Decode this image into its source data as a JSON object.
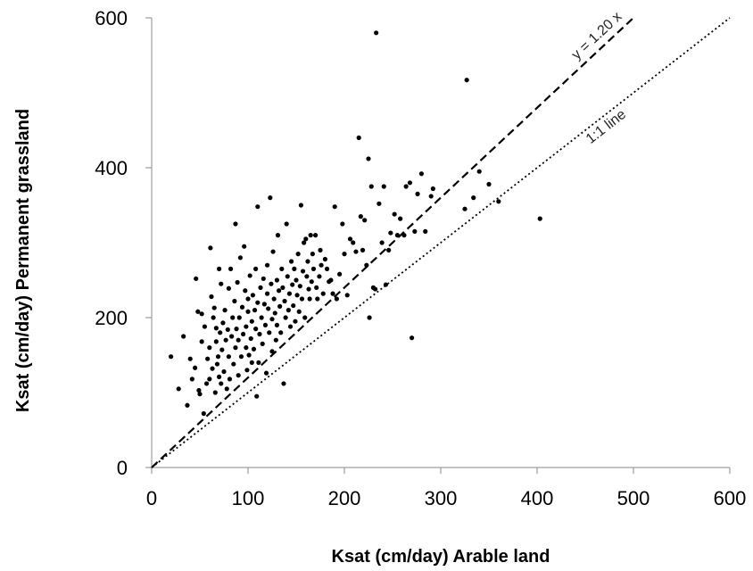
{
  "chart_data": {
    "type": "scatter",
    "title": "",
    "xlabel": "Ksat (cm/day) Arable land",
    "ylabel": "Ksat (cm/day) Permanent grassland",
    "xlim": [
      0,
      600
    ],
    "ylim": [
      0,
      600
    ],
    "x_ticks": [
      "0",
      "100",
      "200",
      "300",
      "400",
      "500",
      "600"
    ],
    "y_ticks": [
      "0",
      "200",
      "400",
      "600"
    ],
    "grid": false,
    "legend": "none",
    "colors": {
      "points": "#000000",
      "axes": "#888888"
    },
    "reference_lines": [
      {
        "label": "y = 1.20 x",
        "slope": 1.2,
        "style": "dashed",
        "x_range": [
          0,
          500
        ]
      },
      {
        "label": "1:1 line",
        "slope": 1.0,
        "style": "dotted",
        "x_range": [
          0,
          600
        ]
      }
    ],
    "points": [
      [
        20,
        148
      ],
      [
        28,
        105
      ],
      [
        33,
        175
      ],
      [
        37,
        83
      ],
      [
        40,
        145
      ],
      [
        42,
        118
      ],
      [
        45,
        133
      ],
      [
        46,
        252
      ],
      [
        48,
        208
      ],
      [
        49,
        103
      ],
      [
        50,
        98
      ],
      [
        52,
        168
      ],
      [
        52,
        205
      ],
      [
        54,
        72
      ],
      [
        55,
        188
      ],
      [
        57,
        112
      ],
      [
        58,
        145
      ],
      [
        60,
        118
      ],
      [
        60,
        160
      ],
      [
        61,
        293
      ],
      [
        62,
        228
      ],
      [
        63,
        132
      ],
      [
        64,
        200
      ],
      [
        65,
        213
      ],
      [
        66,
        100
      ],
      [
        67,
        186
      ],
      [
        67,
        168
      ],
      [
        68,
        138
      ],
      [
        69,
        148
      ],
      [
        70,
        265
      ],
      [
        70,
        121
      ],
      [
        71,
        180
      ],
      [
        72,
        245
      ],
      [
        72,
        112
      ],
      [
        73,
        157
      ],
      [
        74,
        193
      ],
      [
        75,
        128
      ],
      [
        76,
        210
      ],
      [
        77,
        170
      ],
      [
        78,
        105
      ],
      [
        79,
        184
      ],
      [
        80,
        239
      ],
      [
        80,
        148
      ],
      [
        81,
        118
      ],
      [
        82,
        265
      ],
      [
        83,
        175
      ],
      [
        84,
        200
      ],
      [
        85,
        138
      ],
      [
        86,
        222
      ],
      [
        87,
        160
      ],
      [
        87,
        325
      ],
      [
        88,
        185
      ],
      [
        89,
        247
      ],
      [
        90,
        123
      ],
      [
        90,
        170
      ],
      [
        91,
        200
      ],
      [
        92,
        280
      ],
      [
        93,
        148
      ],
      [
        94,
        214
      ],
      [
        95,
        178
      ],
      [
        96,
        295
      ],
      [
        97,
        236
      ],
      [
        98,
        160
      ],
      [
        98,
        188
      ],
      [
        99,
        130
      ],
      [
        100,
        208
      ],
      [
        100,
        225
      ],
      [
        101,
        150
      ],
      [
        102,
        256
      ],
      [
        103,
        172
      ],
      [
        104,
        195
      ],
      [
        104,
        140
      ],
      [
        105,
        230
      ],
      [
        106,
        158
      ],
      [
        107,
        210
      ],
      [
        108,
        185
      ],
      [
        108,
        265
      ],
      [
        109,
        95
      ],
      [
        110,
        220
      ],
      [
        110,
        348
      ],
      [
        111,
        140
      ],
      [
        112,
        178
      ],
      [
        113,
        240
      ],
      [
        114,
        200
      ],
      [
        115,
        165
      ],
      [
        116,
        252
      ],
      [
        117,
        218
      ],
      [
        118,
        190
      ],
      [
        119,
        126
      ],
      [
        120,
        232
      ],
      [
        120,
        270
      ],
      [
        121,
        212
      ],
      [
        122,
        180
      ],
      [
        123,
        360
      ],
      [
        124,
        245
      ],
      [
        125,
        198
      ],
      [
        125,
        155
      ],
      [
        126,
        288
      ],
      [
        127,
        225
      ],
      [
        128,
        206
      ],
      [
        129,
        170
      ],
      [
        130,
        250
      ],
      [
        130,
        190
      ],
      [
        131,
        310
      ],
      [
        132,
        236
      ],
      [
        133,
        215
      ],
      [
        134,
        180
      ],
      [
        135,
        265
      ],
      [
        136,
        240
      ],
      [
        137,
        112
      ],
      [
        138,
        222
      ],
      [
        139,
        200
      ],
      [
        140,
        325
      ],
      [
        141,
        255
      ],
      [
        142,
        210
      ],
      [
        143,
        232
      ],
      [
        144,
        188
      ],
      [
        145,
        275
      ],
      [
        146,
        244
      ],
      [
        147,
        216
      ],
      [
        148,
        265
      ],
      [
        149,
        195
      ],
      [
        150,
        250
      ],
      [
        151,
        230
      ],
      [
        152,
        285
      ],
      [
        153,
        208
      ],
      [
        154,
        242
      ],
      [
        155,
        350
      ],
      [
        156,
        225
      ],
      [
        157,
        262
      ],
      [
        158,
        300
      ],
      [
        159,
        200
      ],
      [
        160,
        305
      ],
      [
        161,
        255
      ],
      [
        162,
        275
      ],
      [
        163,
        238
      ],
      [
        164,
        225
      ],
      [
        165,
        310
      ],
      [
        166,
        248
      ],
      [
        167,
        285
      ],
      [
        168,
        265
      ],
      [
        170,
        310
      ],
      [
        171,
        240
      ],
      [
        172,
        225
      ],
      [
        174,
        255
      ],
      [
        175,
        290
      ],
      [
        176,
        270
      ],
      [
        178,
        232
      ],
      [
        180,
        278
      ],
      [
        182,
        265
      ],
      [
        184,
        248
      ],
      [
        186,
        250
      ],
      [
        188,
        232
      ],
      [
        190,
        348
      ],
      [
        192,
        225
      ],
      [
        195,
        258
      ],
      [
        198,
        325
      ],
      [
        200,
        285
      ],
      [
        203,
        230
      ],
      [
        206,
        305
      ],
      [
        209,
        300
      ],
      [
        212,
        288
      ],
      [
        215,
        440
      ],
      [
        217,
        335
      ],
      [
        219,
        290
      ],
      [
        221,
        330
      ],
      [
        223,
        270
      ],
      [
        225,
        412
      ],
      [
        226,
        200
      ],
      [
        228,
        375
      ],
      [
        230,
        240
      ],
      [
        232,
        238
      ],
      [
        233,
        580
      ],
      [
        236,
        352
      ],
      [
        239,
        300
      ],
      [
        241,
        375
      ],
      [
        243,
        244
      ],
      [
        246,
        290
      ],
      [
        248,
        313
      ],
      [
        252,
        338
      ],
      [
        255,
        310
      ],
      [
        258,
        332
      ],
      [
        262,
        310
      ],
      [
        264,
        375
      ],
      [
        268,
        380
      ],
      [
        270,
        173
      ],
      [
        273,
        315
      ],
      [
        276,
        365
      ],
      [
        280,
        392
      ],
      [
        284,
        315
      ],
      [
        290,
        362
      ],
      [
        292,
        372
      ],
      [
        325,
        345
      ],
      [
        327,
        517
      ],
      [
        334,
        360
      ],
      [
        340,
        395
      ],
      [
        350,
        378
      ],
      [
        360,
        355
      ],
      [
        403,
        332
      ]
    ]
  }
}
